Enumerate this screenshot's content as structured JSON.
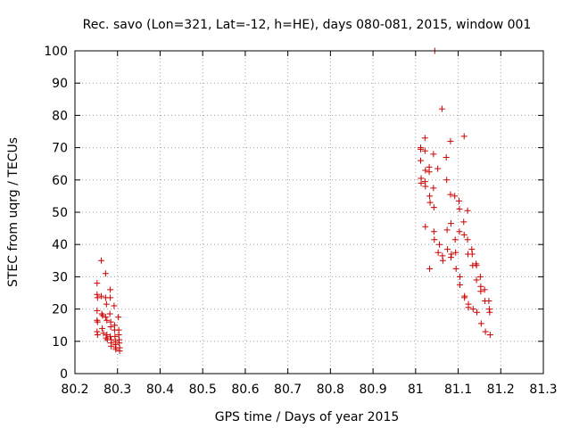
{
  "chart_data": {
    "type": "scatter",
    "title": "Rec. savo (Lon=321, Lat=-12, h=HE), days 080-081, 2015, window 001",
    "xlabel": "GPS time / Days of year 2015",
    "ylabel": "STEC from uqrg / TECUs",
    "xlim": [
      80.2,
      81.3
    ],
    "ylim": [
      0,
      100
    ],
    "xticks": [
      80.2,
      80.3,
      80.4,
      80.5,
      80.6,
      80.7,
      80.8,
      80.9,
      81,
      81.1,
      81.2,
      81.3
    ],
    "xtick_labels": [
      "80.2",
      "80.3",
      "80.4",
      "80.5",
      "80.6",
      "80.7",
      "80.8",
      "80.9",
      "81",
      "81.1",
      "81.2",
      "81.3"
    ],
    "yticks": [
      0,
      10,
      20,
      30,
      40,
      50,
      60,
      70,
      80,
      90,
      100
    ],
    "ytick_labels": [
      "0",
      "10",
      "20",
      "30",
      "40",
      "50",
      "60",
      "70",
      "80",
      "90",
      "100"
    ],
    "grid": true,
    "marker": "+",
    "color": "#cc0000",
    "series": [
      {
        "name": "STEC",
        "points": [
          [
            80.252,
            28
          ],
          [
            80.252,
            24.5
          ],
          [
            80.253,
            23.5
          ],
          [
            80.252,
            19.5
          ],
          [
            80.252,
            16.5
          ],
          [
            80.253,
            16
          ],
          [
            80.252,
            13
          ],
          [
            80.253,
            12
          ],
          [
            80.262,
            35
          ],
          [
            80.262,
            24
          ],
          [
            80.263,
            18.5
          ],
          [
            80.265,
            18
          ],
          [
            80.264,
            14
          ],
          [
            80.267,
            12.5
          ],
          [
            80.272,
            31
          ],
          [
            80.272,
            23.5
          ],
          [
            80.274,
            21.5
          ],
          [
            80.272,
            17.5
          ],
          [
            80.275,
            16.5
          ],
          [
            80.273,
            11
          ],
          [
            80.276,
            10.5
          ],
          [
            80.275,
            12
          ],
          [
            80.283,
            26
          ],
          [
            80.283,
            23.5
          ],
          [
            80.282,
            18.5
          ],
          [
            80.284,
            16
          ],
          [
            80.284,
            14.5
          ],
          [
            80.283,
            11.5
          ],
          [
            80.285,
            10.5
          ],
          [
            80.285,
            9.5
          ],
          [
            80.285,
            8.5
          ],
          [
            80.292,
            21
          ],
          [
            80.293,
            15
          ],
          [
            80.293,
            13.5
          ],
          [
            80.294,
            11.5
          ],
          [
            80.295,
            10
          ],
          [
            80.295,
            9
          ],
          [
            80.296,
            8
          ],
          [
            80.296,
            7.5
          ],
          [
            80.302,
            17.5
          ],
          [
            80.303,
            13.5
          ],
          [
            80.303,
            12
          ],
          [
            80.304,
            10.5
          ],
          [
            80.304,
            9.5
          ],
          [
            80.305,
            8
          ],
          [
            80.305,
            7
          ],
          [
            81.012,
            70
          ],
          [
            81.012,
            69.5
          ],
          [
            81.012,
            66
          ],
          [
            81.013,
            60.5
          ],
          [
            81.013,
            59
          ],
          [
            81.022,
            73
          ],
          [
            81.022,
            69
          ],
          [
            81.023,
            63
          ],
          [
            81.022,
            59.5
          ],
          [
            81.023,
            58
          ],
          [
            81.023,
            45.5
          ],
          [
            81.032,
            64
          ],
          [
            81.032,
            62.5
          ],
          [
            81.033,
            55
          ],
          [
            81.034,
            53
          ],
          [
            81.033,
            32.5
          ],
          [
            81.042,
            68
          ],
          [
            81.042,
            57.5
          ],
          [
            81.043,
            51.5
          ],
          [
            81.043,
            44
          ],
          [
            81.044,
            41.5
          ],
          [
            81.045,
            100
          ],
          [
            81.052,
            63.5
          ],
          [
            81.053,
            37.5
          ],
          [
            81.056,
            40
          ],
          [
            81.062,
            82
          ],
          [
            81.063,
            36.5
          ],
          [
            81.064,
            35
          ],
          [
            81.072,
            67
          ],
          [
            81.073,
            60
          ],
          [
            81.074,
            44.5
          ],
          [
            81.075,
            38.5
          ],
          [
            81.082,
            72
          ],
          [
            81.082,
            55.5
          ],
          [
            81.083,
            46.5
          ],
          [
            81.084,
            37
          ],
          [
            81.083,
            36
          ],
          [
            81.092,
            55
          ],
          [
            81.093,
            41.5
          ],
          [
            81.094,
            37.5
          ],
          [
            81.095,
            32.5
          ],
          [
            81.102,
            53.5
          ],
          [
            81.103,
            51
          ],
          [
            81.103,
            44
          ],
          [
            81.104,
            30
          ],
          [
            81.104,
            27.5
          ],
          [
            81.114,
            73.5
          ],
          [
            81.113,
            47
          ],
          [
            81.114,
            43
          ],
          [
            81.115,
            24
          ],
          [
            81.115,
            23.5
          ],
          [
            81.122,
            50.5
          ],
          [
            81.122,
            41.5
          ],
          [
            81.123,
            37
          ],
          [
            81.124,
            21.5
          ],
          [
            81.124,
            20.5
          ],
          [
            81.132,
            38.5
          ],
          [
            81.133,
            37
          ],
          [
            81.134,
            33.5
          ],
          [
            81.135,
            20
          ],
          [
            81.142,
            34
          ],
          [
            81.143,
            33.5
          ],
          [
            81.143,
            29
          ],
          [
            81.144,
            19
          ],
          [
            81.152,
            30
          ],
          [
            81.153,
            27
          ],
          [
            81.153,
            25.5
          ],
          [
            81.154,
            15.5
          ],
          [
            81.162,
            26
          ],
          [
            81.163,
            22.5
          ],
          [
            81.164,
            13
          ],
          [
            81.172,
            22.5
          ],
          [
            81.173,
            20
          ],
          [
            81.174,
            19
          ],
          [
            81.175,
            12
          ]
        ]
      }
    ]
  }
}
